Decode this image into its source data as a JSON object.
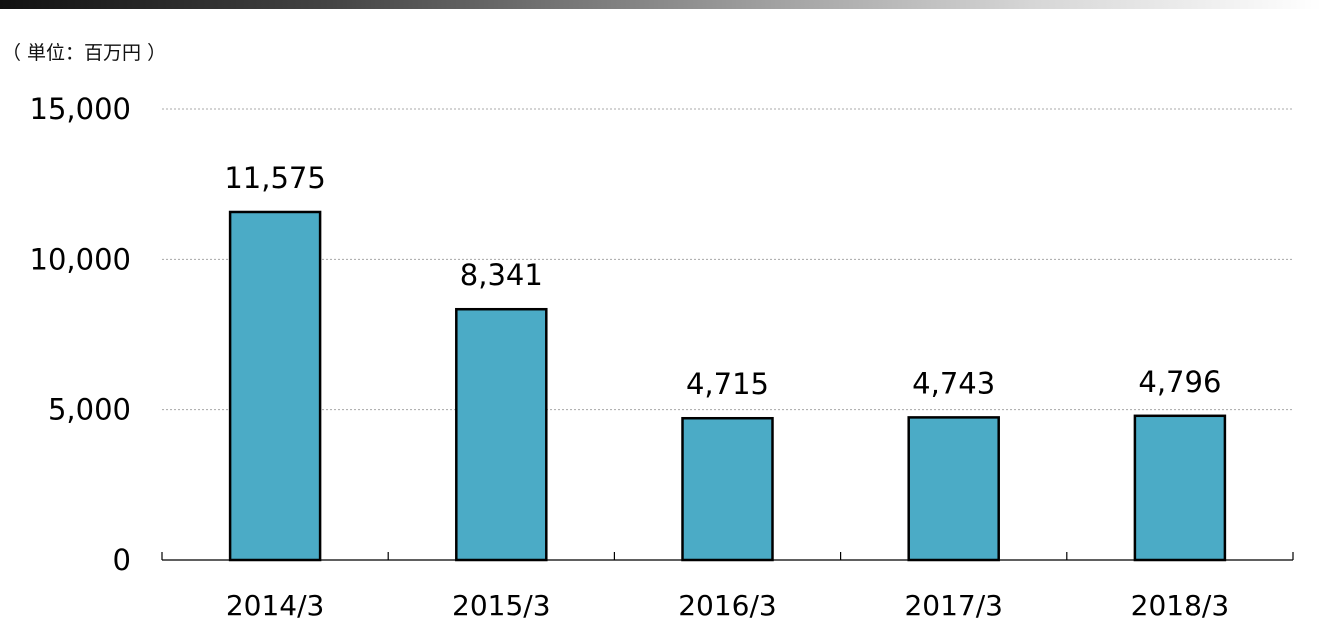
{
  "unit_label": "（ 単位：百万円 ）",
  "colors": {
    "bar_fill": "#4BABC6",
    "bar_stroke": "#000000",
    "grid": "#A8A8A8"
  },
  "chart_data": {
    "type": "bar",
    "title": "",
    "xlabel": "",
    "ylabel": "（ 単位：百万円 ）",
    "categories": [
      "2014/3",
      "2015/3",
      "2016/3",
      "2017/3",
      "2018/3"
    ],
    "values": [
      11575,
      8341,
      4715,
      4743,
      4796
    ],
    "data_labels": [
      "11,575",
      "8,341",
      "4,715",
      "4,743",
      "4,796"
    ],
    "ylim": [
      0,
      15000
    ],
    "yticks": [
      0,
      5000,
      10000,
      15000
    ],
    "ytick_labels": [
      "0",
      "5,000",
      "10,000",
      "15,000"
    ],
    "grid": true,
    "legend": "none"
  }
}
